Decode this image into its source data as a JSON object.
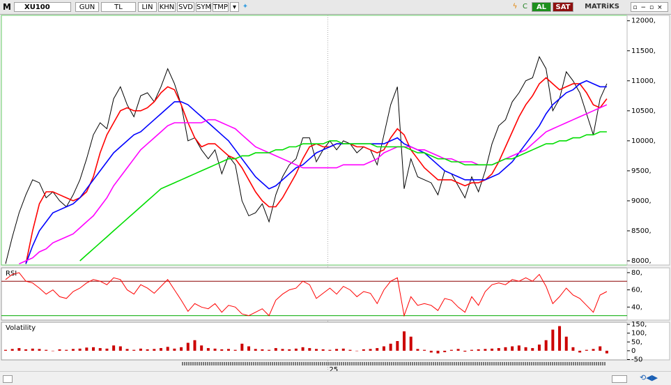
{
  "toolbar": {
    "menu": "M",
    "symbol": "XU100",
    "buttons": [
      "GUN",
      "TL",
      "LIN",
      "KHN",
      "SVD",
      "SYM",
      "TMP"
    ],
    "buy": "AL",
    "sell": "SAT",
    "brand": "MATRiKS"
  },
  "chart_data": [
    {
      "type": "line",
      "xlim": [
        0,
        92
      ],
      "ylim": [
        7930,
        12090
      ],
      "xticks": [
        {
          "value": 47.7,
          "label": "25"
        }
      ],
      "yticks": [
        {
          "value": 12000,
          "label": "12000,"
        },
        {
          "value": 11500,
          "label": "11500,"
        },
        {
          "value": 11000,
          "label": "11000,"
        },
        {
          "value": 10500,
          "label": "10500,"
        },
        {
          "value": 10000,
          "label": "10000,"
        },
        {
          "value": 9500,
          "label": "9500,"
        },
        {
          "value": 9000,
          "label": "9000,"
        },
        {
          "value": 8500,
          "label": "8500,"
        },
        {
          "value": 8000,
          "label": "8000,"
        }
      ],
      "series": [
        {
          "color": "#000000",
          "values": [
            7950,
            8400,
            8800,
            9100,
            9350,
            9300,
            9050,
            9150,
            9000,
            8900,
            9100,
            9350,
            9700,
            10100,
            10300,
            10200,
            10700,
            10900,
            10600,
            10400,
            10750,
            10800,
            10650,
            10900,
            11200,
            10950,
            10600,
            10000,
            10050,
            9850,
            9700,
            9850,
            9450,
            9750,
            9600,
            9000,
            8750,
            8800,
            8950,
            8650,
            9100,
            9400,
            9600,
            9700,
            10050,
            10050,
            9650,
            9850,
            10000,
            9850,
            10000,
            9950,
            9800,
            9900,
            9850,
            9600,
            10100,
            10600,
            10900,
            9200,
            9700,
            9400,
            9350,
            9300,
            9100,
            9500,
            9450,
            9250,
            9050,
            9400,
            9150,
            9500,
            9950,
            10250,
            10350,
            10650,
            10800,
            11000,
            11050,
            11400,
            11200,
            10500,
            10700,
            11150,
            11000,
            10800,
            10450,
            10100,
            10700,
            10950
          ]
        },
        {
          "color": "#ff0000",
          "values": [
            null,
            null,
            null,
            7950,
            8500,
            8950,
            9150,
            9150,
            9100,
            9050,
            9000,
            9050,
            9150,
            9400,
            9800,
            10100,
            10300,
            10500,
            10550,
            10500,
            10500,
            10550,
            10650,
            10800,
            10900,
            10850,
            10600,
            10300,
            10050,
            9900,
            9950,
            9950,
            9850,
            9750,
            9700,
            9550,
            9350,
            9150,
            9000,
            8900,
            8900,
            9050,
            9250,
            9450,
            9700,
            9900,
            9950,
            9900,
            9900,
            9950,
            9950,
            9950,
            9900,
            9900,
            9850,
            9800,
            9850,
            10050,
            10200,
            10100,
            9850,
            9700,
            9550,
            9450,
            9350,
            9350,
            9350,
            9300,
            9250,
            9300,
            9300,
            9350,
            9450,
            9650,
            9900,
            10150,
            10400,
            10600,
            10750,
            10950,
            11050,
            10950,
            10850,
            10900,
            10950,
            10950,
            10800,
            10600,
            10550,
            10700
          ]
        },
        {
          "color": "#0000ff",
          "values": [
            null,
            null,
            null,
            7950,
            8250,
            8500,
            8650,
            8800,
            8850,
            8900,
            8950,
            9050,
            9200,
            9350,
            9500,
            9650,
            9800,
            9900,
            10000,
            10100,
            10150,
            10250,
            10350,
            10450,
            10550,
            10650,
            10650,
            10600,
            10500,
            10400,
            10300,
            10200,
            10100,
            10000,
            9850,
            9700,
            9550,
            9400,
            9300,
            9200,
            9250,
            9350,
            9450,
            9550,
            9600,
            9700,
            9800,
            9850,
            9900,
            9950,
            9950,
            9950,
            9950,
            9950,
            9950,
            9950,
            9950,
            10000,
            10050,
            9950,
            9900,
            9850,
            9800,
            9700,
            9600,
            9500,
            9450,
            9400,
            9350,
            9350,
            9350,
            9350,
            9400,
            9450,
            9550,
            9650,
            9800,
            9950,
            10100,
            10250,
            10450,
            10600,
            10700,
            10800,
            10850,
            10950,
            11000,
            10950,
            10900,
            10900
          ]
        },
        {
          "color": "#ff00ff",
          "values": [
            null,
            null,
            7950,
            8000,
            8050,
            8150,
            8200,
            8300,
            8350,
            8400,
            8450,
            8550,
            8650,
            8750,
            8900,
            9050,
            9250,
            9400,
            9550,
            9700,
            9850,
            9950,
            10050,
            10150,
            10250,
            10300,
            10300,
            10300,
            10300,
            10300,
            10350,
            10350,
            10300,
            10250,
            10200,
            10100,
            10000,
            9900,
            9850,
            9800,
            9750,
            9700,
            9650,
            9600,
            9550,
            9550,
            9550,
            9550,
            9550,
            9550,
            9600,
            9600,
            9600,
            9600,
            9650,
            9700,
            9800,
            9850,
            9900,
            9900,
            9900,
            9850,
            9850,
            9800,
            9750,
            9700,
            9700,
            9650,
            9650,
            9650,
            9600,
            9600,
            9600,
            9650,
            9700,
            9750,
            9800,
            9850,
            9950,
            10050,
            10150,
            10200,
            10250,
            10300,
            10350,
            10400,
            10450,
            10500,
            10550,
            10600
          ]
        },
        {
          "color": "#00dd00",
          "values": [
            null,
            null,
            null,
            null,
            null,
            null,
            null,
            null,
            null,
            null,
            null,
            8000,
            8100,
            8200,
            8300,
            8400,
            8500,
            8600,
            8700,
            8800,
            8900,
            9000,
            9100,
            9200,
            9250,
            9300,
            9350,
            9400,
            9450,
            9500,
            9550,
            9600,
            9650,
            9700,
            9700,
            9750,
            9750,
            9800,
            9800,
            9800,
            9850,
            9850,
            9900,
            9900,
            9950,
            9950,
            9950,
            9950,
            10000,
            10000,
            9950,
            9950,
            9950,
            9950,
            9950,
            9900,
            9900,
            9900,
            9900,
            9900,
            9850,
            9800,
            9800,
            9750,
            9700,
            9700,
            9650,
            9650,
            9600,
            9600,
            9600,
            9600,
            9600,
            9650,
            9700,
            9700,
            9750,
            9800,
            9850,
            9900,
            9950,
            9950,
            10000,
            10000,
            10050,
            10050,
            10100,
            10100,
            10150,
            10150
          ]
        }
      ]
    },
    {
      "type": "line",
      "title": "RSI",
      "xlim": [
        0,
        92
      ],
      "ylim": [
        24.8,
        85.6
      ],
      "yticks": [
        {
          "value": 80,
          "label": "80,"
        },
        {
          "value": 60,
          "label": "60,"
        },
        {
          "value": 40,
          "label": "40,"
        }
      ],
      "reference_lines": [
        {
          "value": 70,
          "color": "#8b0000"
        },
        {
          "value": 30,
          "color": "#00aa00"
        }
      ],
      "series": [
        {
          "color": "#ff0000",
          "values": [
            72,
            78,
            80,
            70,
            68,
            62,
            55,
            60,
            52,
            50,
            58,
            62,
            68,
            72,
            70,
            66,
            74,
            72,
            60,
            55,
            66,
            62,
            56,
            64,
            72,
            60,
            48,
            35,
            44,
            40,
            38,
            44,
            34,
            42,
            40,
            32,
            30,
            34,
            38,
            30,
            48,
            55,
            60,
            62,
            70,
            66,
            50,
            56,
            62,
            55,
            64,
            60,
            52,
            58,
            56,
            44,
            60,
            70,
            74,
            30,
            52,
            42,
            44,
            42,
            36,
            50,
            48,
            40,
            34,
            52,
            42,
            58,
            66,
            68,
            66,
            72,
            70,
            74,
            70,
            78,
            64,
            44,
            52,
            62,
            54,
            50,
            42,
            34,
            54,
            58
          ]
        }
      ]
    },
    {
      "type": "bar",
      "title": "Volatility",
      "xlim": [
        0,
        92
      ],
      "ylim": [
        -52,
        162
      ],
      "color": "#cc0000",
      "yticks": [
        {
          "value": 150,
          "label": "150,"
        },
        {
          "value": 100,
          "label": "100,"
        },
        {
          "value": 50,
          "label": "50,"
        },
        0,
        -50
      ],
      "values": [
        5,
        10,
        15,
        8,
        12,
        10,
        5,
        0,
        8,
        5,
        10,
        12,
        18,
        20,
        15,
        12,
        30,
        25,
        10,
        5,
        12,
        8,
        10,
        15,
        22,
        12,
        20,
        45,
        60,
        30,
        15,
        12,
        8,
        10,
        5,
        40,
        25,
        10,
        8,
        5,
        15,
        10,
        8,
        12,
        20,
        15,
        10,
        8,
        5,
        10,
        12,
        5,
        0,
        8,
        10,
        15,
        25,
        40,
        55,
        110,
        80,
        10,
        5,
        -10,
        -15,
        -8,
        5,
        10,
        -5,
        5,
        8,
        10,
        12,
        15,
        20,
        25,
        30,
        20,
        15,
        35,
        60,
        120,
        140,
        80,
        20,
        -10,
        5,
        10,
        25,
        -15
      ]
    }
  ]
}
